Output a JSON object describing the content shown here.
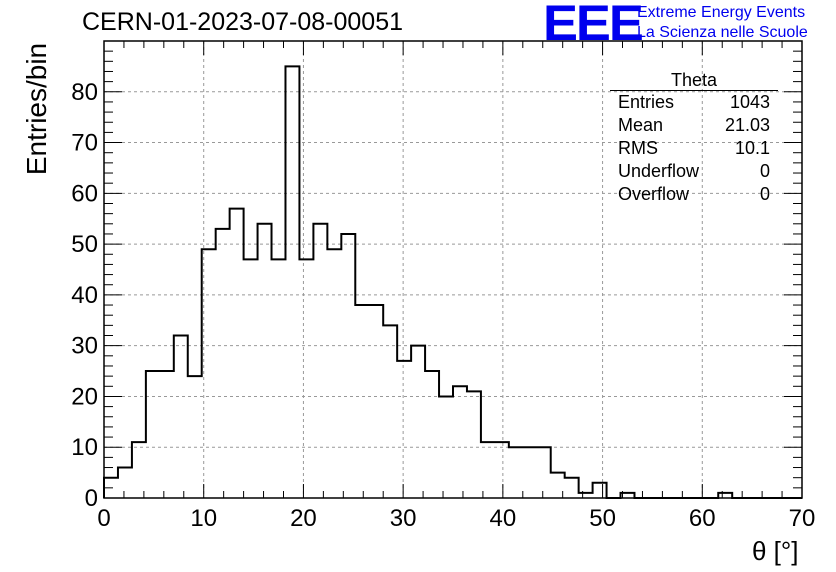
{
  "header": {
    "run_title": "CERN-01-2023-07-08-00051",
    "logo_text": "EEE",
    "logo_line1": "Extreme Energy Events",
    "logo_line2": "La Scienza nelle Scuole",
    "logo_color": "#0000ee"
  },
  "stats": {
    "title": "Theta",
    "rows": [
      {
        "label": "Entries",
        "value": "1043"
      },
      {
        "label": "Mean",
        "value": "21.03"
      },
      {
        "label": "RMS",
        "value": "10.1"
      },
      {
        "label": "Underflow",
        "value": "0"
      },
      {
        "label": "Overflow",
        "value": "0"
      }
    ]
  },
  "chart_data": {
    "type": "histogram",
    "title": "CERN-01-2023-07-08-00051",
    "xlabel": "θ [°]",
    "ylabel": "Entries/bin",
    "xlim": [
      0,
      70
    ],
    "ylim": [
      0,
      90
    ],
    "bin_width": 1.4,
    "bin_edges_start": 0,
    "values": [
      4,
      6,
      11,
      25,
      25,
      32,
      24,
      49,
      53,
      57,
      47,
      54,
      47,
      85,
      47,
      54,
      49,
      52,
      38,
      38,
      34,
      27,
      30,
      25,
      20,
      22,
      21,
      11,
      11,
      10,
      10,
      10,
      5,
      4,
      1,
      3,
      0,
      1,
      0,
      0,
      0,
      0,
      0,
      0,
      1,
      0,
      0,
      0,
      0,
      0
    ],
    "x_ticks": [
      "0",
      "10",
      "20",
      "30",
      "40",
      "50",
      "60",
      "70"
    ],
    "y_ticks": [
      "0",
      "10",
      "20",
      "30",
      "40",
      "50",
      "60",
      "70",
      "80"
    ],
    "grid": true,
    "line_color": "#000000"
  }
}
